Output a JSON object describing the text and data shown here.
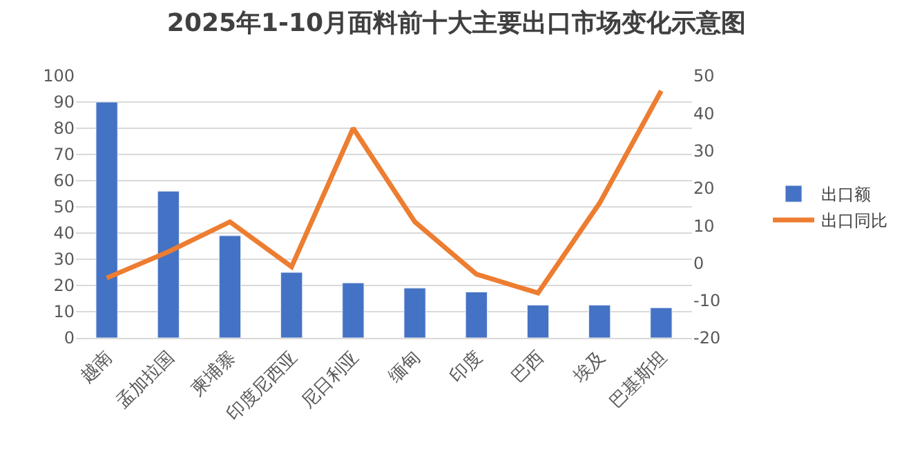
{
  "chart_data": {
    "type": "bar",
    "title": "2025年1-10月面料前十大主要出口市场变化示意图",
    "categories": [
      "越南",
      "孟加拉国",
      "柬埔寨",
      "印度尼西亚",
      "尼日利亚",
      "缅甸",
      "印度",
      "巴西",
      "埃及",
      "巴基斯坦"
    ],
    "series": [
      {
        "name": "出口额",
        "color": "#4472c4",
        "values": [
          90,
          56,
          39,
          25,
          21,
          19,
          17.5,
          12.5,
          12.5,
          11.5
        ]
      },
      {
        "name": "出口同比",
        "type": "line",
        "axis": "y2",
        "color": "#ed7d31",
        "values": [
          -4,
          3,
          11,
          -1,
          36,
          11,
          -3,
          -8,
          16,
          46
        ]
      }
    ],
    "ylim": [
      0,
      100
    ],
    "yticks": [
      0,
      10,
      20,
      30,
      40,
      50,
      60,
      70,
      80,
      90,
      100
    ],
    "y2lim": [
      -20,
      50
    ],
    "y2ticks": [
      -20,
      -10,
      0,
      10,
      20,
      30,
      40,
      50
    ],
    "grid": "y",
    "legend": "right",
    "marker": "none",
    "line_style": "solid"
  }
}
